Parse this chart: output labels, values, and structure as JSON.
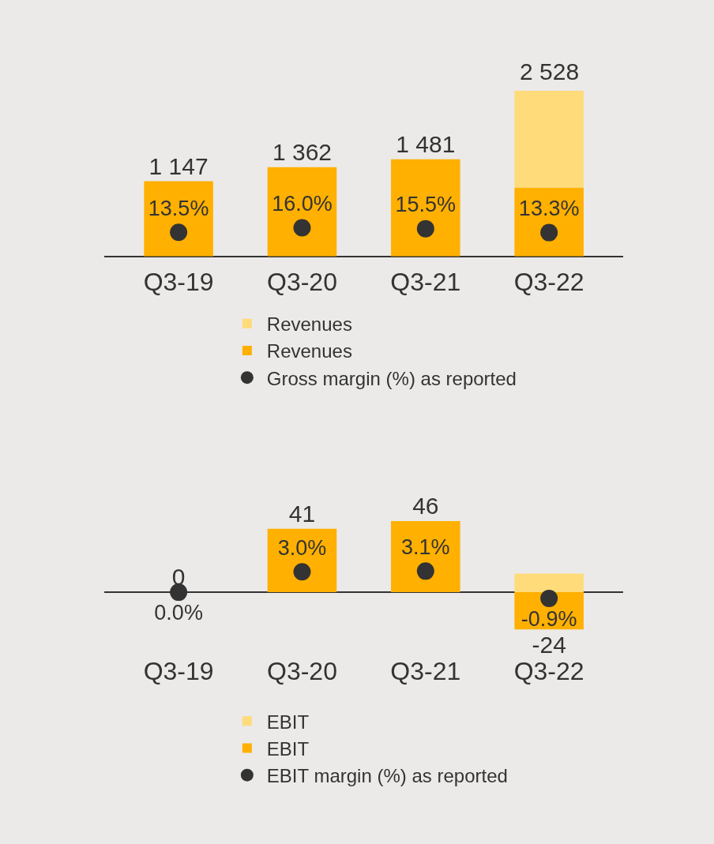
{
  "chart_data": [
    {
      "type": "bar",
      "stacked": true,
      "categories": [
        "Q3-19",
        "Q3-20",
        "Q3-21",
        "Q3-22"
      ],
      "tick_labels": "x",
      "grid": false,
      "legend": "bottom",
      "series": [
        {
          "name": "Revenues",
          "color": "#ffb000",
          "values": [
            1147,
            1362,
            1481,
            1050
          ],
          "value_labels": [
            "1 147",
            "1 362",
            "1 481",
            null
          ]
        },
        {
          "name": "Revenues",
          "color": "#ffdb7a",
          "values": [
            null,
            null,
            null,
            1478
          ]
        },
        {
          "name": "Gross margin (%) as reported",
          "type": "scatter",
          "axis": "y2",
          "marker": "circle",
          "color": "#333333",
          "values": [
            13.5,
            16.0,
            15.5,
            13.3
          ],
          "value_labels": [
            "13.5%",
            "16.0%",
            "15.5%",
            "13.3%"
          ]
        }
      ],
      "totals": [
        null,
        null,
        null,
        "2 528"
      ]
    },
    {
      "type": "bar",
      "stacked": true,
      "categories": [
        "Q3-19",
        "Q3-20",
        "Q3-21",
        "Q3-22"
      ],
      "tick_labels": "x",
      "grid": false,
      "legend": "bottom",
      "series": [
        {
          "name": "EBIT",
          "color": "#ffb000",
          "values": [
            0,
            41,
            46,
            -24
          ],
          "value_labels": [
            "0",
            "41",
            "46",
            "-24"
          ]
        },
        {
          "name": "EBIT",
          "color": "#ffdb7a",
          "values": [
            0,
            0,
            0,
            12
          ]
        },
        {
          "name": "EBIT margin (%) as reported",
          "type": "scatter",
          "axis": "y2",
          "marker": "circle",
          "color": "#333333",
          "values": [
            0.0,
            3.0,
            3.1,
            -0.9
          ],
          "value_labels": [
            "0.0%",
            "3.0%",
            "3.1%",
            "-0.9%"
          ]
        }
      ]
    }
  ]
}
